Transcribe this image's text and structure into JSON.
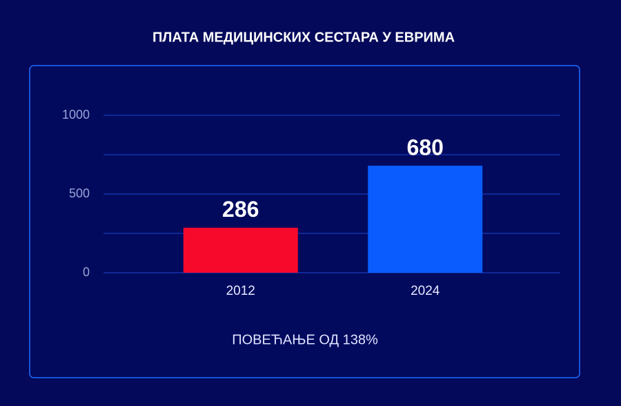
{
  "chart_data": {
    "type": "bar",
    "title": "ПЛАТА МЕДИЦИНСКИХ СЕСТАРА У ЕВРИМА",
    "categories": [
      "2012",
      "2024"
    ],
    "values": [
      286,
      680
    ],
    "colors": [
      "#f7092b",
      "#0a5cff"
    ],
    "ylim": [
      0,
      1000
    ],
    "yticks": [
      0,
      500,
      1000
    ],
    "minor_yticks": [
      250,
      750
    ],
    "grid": true,
    "annotation": "ПОВЕЋАЊЕ ОД 138%"
  }
}
